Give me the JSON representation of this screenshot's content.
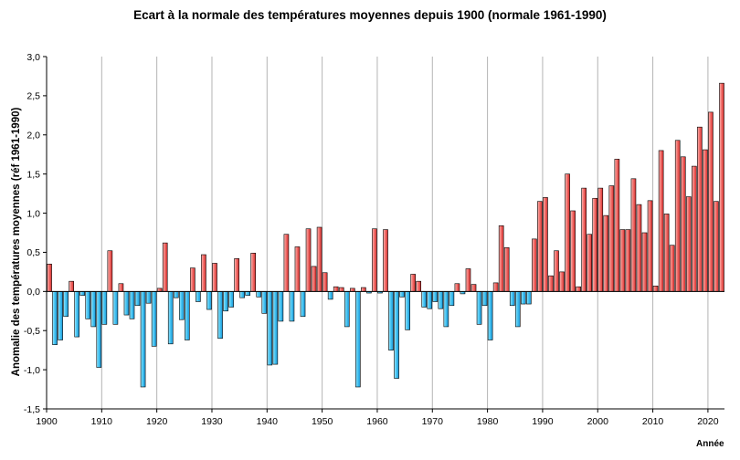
{
  "chart_data": {
    "type": "bar",
    "title": "Ecart à la normale des températures moyennes depuis 1900 (normale 1961-1990)",
    "ylabel": "Anomalie des températures moyennes (réf 1961-1990)",
    "xlabel": "Année",
    "ylim": [
      -1.5,
      3.0
    ],
    "xlim": [
      1900,
      2022
    ],
    "grid": "vertical",
    "y_ticks": [
      "-1,5",
      "-1,0",
      "-0,5",
      "0,0",
      "0,5",
      "1,0",
      "1,5",
      "2,0",
      "2,5",
      "3,0"
    ],
    "x_ticks": [
      "1900",
      "1910",
      "1920",
      "1930",
      "1940",
      "1950",
      "1960",
      "1970",
      "1980",
      "1990",
      "2000",
      "2010",
      "2020"
    ],
    "colors": {
      "positive": "#ec5c5c",
      "negative": "#3bb9ea"
    },
    "x": [
      1900,
      1901,
      1902,
      1903,
      1904,
      1905,
      1906,
      1907,
      1908,
      1909,
      1910,
      1911,
      1912,
      1913,
      1914,
      1915,
      1916,
      1917,
      1918,
      1919,
      1920,
      1921,
      1922,
      1923,
      1924,
      1925,
      1926,
      1927,
      1928,
      1929,
      1930,
      1931,
      1932,
      1933,
      1934,
      1935,
      1936,
      1937,
      1938,
      1939,
      1940,
      1941,
      1942,
      1943,
      1944,
      1945,
      1946,
      1947,
      1948,
      1949,
      1950,
      1951,
      1952,
      1953,
      1954,
      1955,
      1956,
      1957,
      1958,
      1959,
      1960,
      1961,
      1962,
      1963,
      1964,
      1965,
      1966,
      1967,
      1968,
      1969,
      1970,
      1971,
      1972,
      1973,
      1974,
      1975,
      1976,
      1977,
      1978,
      1979,
      1980,
      1981,
      1982,
      1983,
      1984,
      1985,
      1986,
      1987,
      1988,
      1989,
      1990,
      1991,
      1992,
      1993,
      1994,
      1995,
      1996,
      1997,
      1998,
      1999,
      2000,
      2001,
      2002,
      2003,
      2004,
      2005,
      2006,
      2007,
      2008,
      2009,
      2010,
      2011,
      2012,
      2013,
      2014,
      2015,
      2016,
      2017,
      2018,
      2019,
      2020,
      2021,
      2022
    ],
    "values": [
      0.35,
      -0.68,
      -0.62,
      -0.32,
      0.13,
      -0.58,
      -0.05,
      -0.35,
      -0.45,
      -0.97,
      -0.42,
      0.52,
      -0.42,
      0.1,
      -0.3,
      -0.35,
      -0.18,
      -1.22,
      -0.15,
      -0.7,
      0.04,
      0.62,
      -0.67,
      -0.08,
      -0.36,
      -0.62,
      0.3,
      -0.13,
      0.47,
      -0.23,
      0.36,
      -0.6,
      -0.25,
      -0.2,
      0.42,
      -0.08,
      -0.05,
      0.49,
      -0.07,
      -0.28,
      -0.94,
      -0.93,
      -0.38,
      0.73,
      -0.38,
      0.57,
      -0.32,
      0.8,
      0.32,
      0.82,
      0.24,
      -0.1,
      0.06,
      0.05,
      -0.45,
      0.04,
      -1.22,
      0.05,
      -0.02,
      0.8,
      -0.02,
      0.79,
      -0.75,
      -1.11,
      -0.07,
      -0.49,
      0.22,
      0.13,
      -0.2,
      -0.22,
      -0.13,
      -0.22,
      -0.45,
      -0.18,
      0.1,
      -0.03,
      0.29,
      0.09,
      -0.42,
      -0.18,
      -0.62,
      0.11,
      0.84,
      0.56,
      -0.18,
      -0.45,
      -0.16,
      -0.16,
      0.67,
      1.15,
      1.2,
      0.2,
      0.52,
      0.25,
      1.5,
      1.03,
      0.06,
      1.32,
      0.73,
      1.19,
      1.32,
      0.97,
      1.35,
      1.69,
      0.79,
      0.79,
      1.44,
      1.11,
      0.75,
      1.16,
      0.07,
      1.8,
      0.99,
      0.59,
      1.93,
      1.72,
      1.21,
      1.6,
      2.1,
      1.81,
      2.29,
      1.15,
      2.66
    ]
  }
}
